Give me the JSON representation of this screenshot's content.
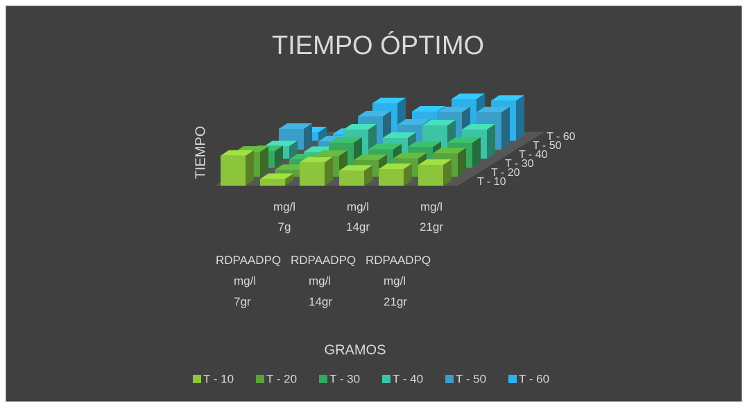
{
  "chart_data": {
    "type": "bar3d",
    "title": "TIEMPO ÓPTIMO",
    "y_axis_label": "TIEMPO",
    "x_axis_label": "GRAMOS",
    "categories": [
      "RDPAADPQ mg/l 7gr",
      "mg/l 7g",
      "RDPAADPQ mg/l 14gr",
      "mg/l 14gr",
      "RDPAADPQ mg/l 21gr",
      "mg/l 21gr"
    ],
    "series": [
      {
        "name": "T - 10",
        "color": "#8cc43c",
        "values": [
          36,
          8,
          28,
          18,
          20,
          25
        ]
      },
      {
        "name": "T - 20",
        "color": "#5aa43a",
        "values": [
          30,
          8,
          25,
          20,
          22,
          28
        ]
      },
      {
        "name": "T - 30",
        "color": "#36a860",
        "values": [
          20,
          10,
          30,
          22,
          25,
          30
        ]
      },
      {
        "name": "T - 40",
        "color": "#3cc4a4",
        "values": [
          15,
          8,
          35,
          25,
          40,
          35
        ]
      },
      {
        "name": "T - 50",
        "color": "#3a9ec8",
        "values": [
          25,
          10,
          40,
          30,
          45,
          45
        ]
      },
      {
        "name": "T - 60",
        "color": "#2eb0ea",
        "values": [
          10,
          8,
          45,
          35,
          50,
          48
        ]
      }
    ],
    "legend": "bottom"
  }
}
